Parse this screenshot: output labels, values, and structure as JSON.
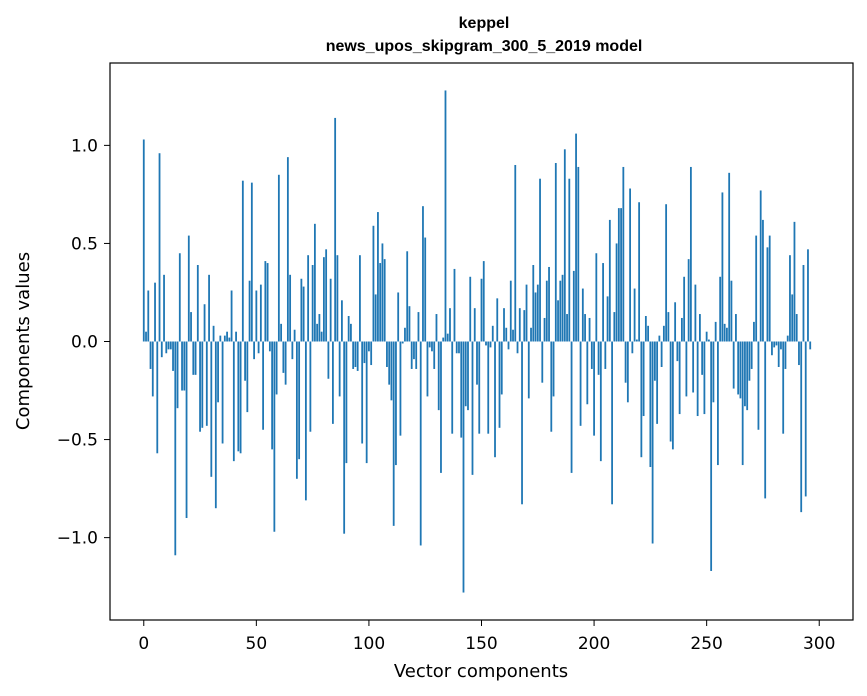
{
  "chart_data": {
    "type": "bar",
    "title_lines": [
      "keppel",
      "news_upos_skipgram_300_5_2019 model"
    ],
    "xlabel": "Vector components",
    "ylabel": "Components values",
    "xlim": [
      -15,
      315
    ],
    "ylim": [
      -1.42,
      1.42
    ],
    "x_ticks": [
      0,
      50,
      100,
      150,
      200,
      250,
      300
    ],
    "x_tick_labels": [
      "0",
      "50",
      "100",
      "150",
      "200",
      "250",
      "300"
    ],
    "y_ticks": [
      -1.0,
      -0.5,
      0.0,
      0.5,
      1.0
    ],
    "y_tick_labels": [
      "−1.0",
      "−0.5",
      "0.0",
      "0.5",
      "1.0"
    ],
    "bar_color": "#1f77b4",
    "grid": false,
    "legend": "none",
    "series": [
      {
        "values": [
          1.03,
          0.05,
          0.26,
          -0.14,
          -0.28,
          0.3,
          -0.57,
          0.96,
          -0.08,
          0.34,
          -0.06,
          -0.04,
          -0.04,
          -0.15,
          -1.09,
          -0.34,
          0.45,
          -0.25,
          -0.25,
          -0.9,
          0.54,
          0.15,
          -0.17,
          -0.17,
          0.39,
          -0.46,
          -0.44,
          0.19,
          -0.43,
          0.34,
          -0.69,
          0.08,
          -0.85,
          -0.31,
          0.03,
          -0.52,
          0.03,
          0.05,
          0.02,
          0.26,
          -0.61,
          0.05,
          -0.56,
          -0.57,
          0.82,
          -0.2,
          -0.36,
          0.31,
          0.81,
          -0.09,
          0.26,
          -0.06,
          0.29,
          -0.45,
          0.41,
          0.4,
          -0.05,
          -0.55,
          -0.97,
          -0.27,
          0.85,
          0.09,
          -0.16,
          -0.22,
          0.94,
          0.34,
          -0.09,
          0.06,
          -0.7,
          -0.6,
          0.32,
          0.28,
          -0.81,
          0.44,
          -0.46,
          0.39,
          0.6,
          0.09,
          0.14,
          0.05,
          0.43,
          0.47,
          -0.19,
          0.32,
          -0.42,
          1.14,
          0.44,
          -0.28,
          0.21,
          -0.98,
          -0.62,
          0.13,
          0.09,
          -0.14,
          -0.13,
          -0.15,
          0.44,
          -0.52,
          -0.11,
          -0.62,
          -0.05,
          -0.12,
          0.59,
          0.24,
          0.66,
          0.4,
          0.5,
          0.42,
          -0.13,
          -0.22,
          -0.3,
          -0.94,
          -0.63,
          0.25,
          -0.48,
          -0.01,
          0.07,
          0.46,
          0.18,
          -0.14,
          -0.09,
          -0.14,
          0.15,
          -1.04,
          0.69,
          0.53,
          -0.28,
          -0.03,
          -0.05,
          -0.14,
          0.14,
          -0.35,
          -0.67,
          0.02,
          1.28,
          0.04,
          0.17,
          -0.47,
          0.37,
          -0.06,
          -0.06,
          -0.49,
          -1.28,
          -0.33,
          -0.35,
          0.33,
          -0.68,
          0.17,
          -0.22,
          -0.47,
          0.32,
          0.41,
          -0.02,
          -0.47,
          -0.03,
          0.08,
          -0.59,
          0.22,
          -0.44,
          -0.27,
          0.17,
          0.07,
          -0.04,
          0.31,
          0.06,
          0.9,
          -0.06,
          0.17,
          -0.83,
          0.16,
          0.29,
          -0.29,
          0.07,
          0.39,
          0.25,
          0.29,
          0.83,
          -0.21,
          0.12,
          0.31,
          0.38,
          -0.46,
          -0.28,
          0.91,
          0.21,
          0.31,
          0.34,
          0.98,
          0.14,
          0.83,
          -0.67,
          0.36,
          1.06,
          0.89,
          -0.43,
          0.27,
          0.14,
          -0.32,
          0.12,
          -0.14,
          -0.48,
          0.45,
          -0.17,
          -0.61,
          0.4,
          -0.14,
          0.23,
          0.62,
          -0.83,
          0.15,
          0.5,
          0.68,
          0.68,
          0.89,
          -0.21,
          -0.31,
          0.78,
          -0.06,
          0.27,
          0.01,
          0.71,
          -0.59,
          -0.38,
          0.13,
          0.08,
          -0.64,
          -1.03,
          -0.2,
          -0.42,
          0.03,
          -0.13,
          0.08,
          0.7,
          0.15,
          -0.51,
          -0.55,
          0.2,
          -0.1,
          -0.37,
          0.12,
          0.33,
          -0.28,
          0.42,
          0.89,
          -0.26,
          0.29,
          -0.38,
          0.14,
          -0.17,
          -0.37,
          0.05,
          0.01,
          -1.17,
          -0.31,
          0.1,
          -0.63,
          0.33,
          0.76,
          0.09,
          0.07,
          0.86,
          0.31,
          -0.24,
          0.14,
          -0.27,
          -0.29,
          -0.63,
          -0.33,
          -0.35,
          -0.2,
          -0.14,
          0.1,
          0.54,
          -0.45,
          0.77,
          0.62,
          -0.8,
          0.48,
          0.54,
          -0.07,
          -0.03,
          -0.02,
          -0.13,
          -0.04,
          -0.47,
          -0.14,
          0.03,
          0.44,
          0.24,
          0.61,
          0.14,
          -0.12,
          -0.87,
          0.39,
          -0.79,
          0.47,
          -0.04
        ]
      }
    ]
  }
}
